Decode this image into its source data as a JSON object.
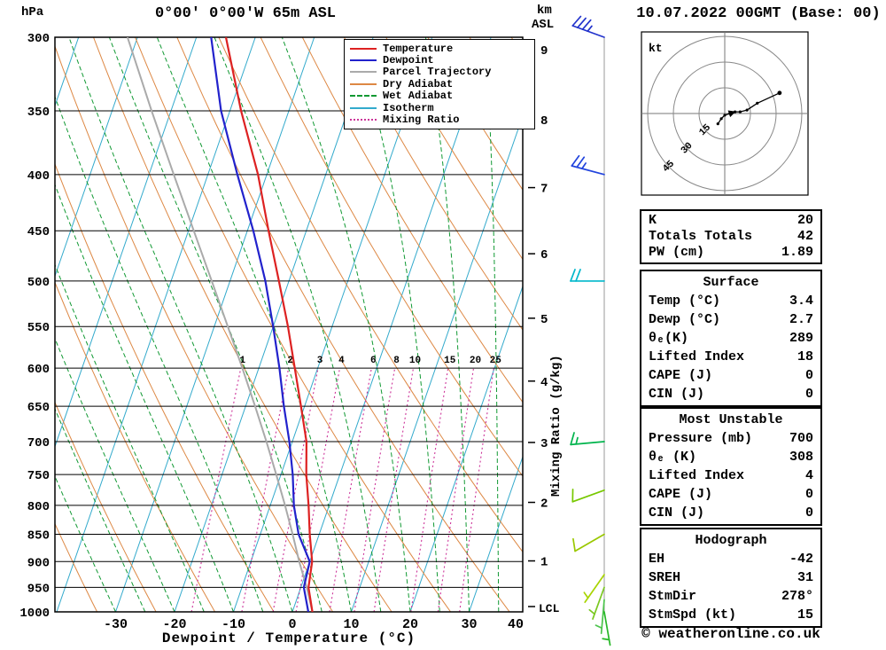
{
  "header": {
    "pressure_unit": "hPa",
    "station_title": "0°00' 0°00'W 65m ASL",
    "date_title": "10.07.2022 00GMT (Base: 00)",
    "km_label": "km",
    "asl_label": "ASL"
  },
  "chart_data": {
    "type": "skew-t-log-p sounding",
    "title": "0°00' 0°00'W 65m ASL",
    "xlabel": "Dewpoint / Temperature (°C)",
    "x_ticks": [
      -30,
      -20,
      -10,
      0,
      10,
      20,
      30,
      40
    ],
    "pressure_ticks_hpa": [
      300,
      350,
      400,
      450,
      500,
      550,
      600,
      650,
      700,
      750,
      800,
      850,
      900,
      950,
      1000
    ],
    "km_ticks": [
      9,
      8,
      7,
      6,
      5,
      4,
      3,
      2,
      1
    ],
    "lcl_label": "LCL",
    "mixing_ratio_axis_label": "Mixing Ratio (g/kg)",
    "mixing_ratio_lines_g_kg": [
      1,
      2,
      3,
      4,
      6,
      8,
      10,
      15,
      20,
      25
    ],
    "isotherm_step_c": 10,
    "dry_adiabat_step_k": 10,
    "wet_adiabat_step_c": 5,
    "legend": [
      {
        "label": "Temperature",
        "color": "#dd2222",
        "style": "solid"
      },
      {
        "label": "Dewpoint",
        "color": "#2222cc",
        "style": "solid"
      },
      {
        "label": "Parcel Trajectory",
        "color": "#aaaaaa",
        "style": "solid"
      },
      {
        "label": "Dry Adiabat",
        "color": "#dd8844",
        "style": "solid"
      },
      {
        "label": "Wet Adiabat",
        "color": "#119933",
        "style": "dashed"
      },
      {
        "label": "Isotherm",
        "color": "#33aacc",
        "style": "solid"
      },
      {
        "label": "Mixing Ratio",
        "color": "#cc3399",
        "style": "dotted"
      }
    ],
    "sounding": {
      "pressure_hpa": [
        1000,
        950,
        900,
        850,
        800,
        750,
        700,
        650,
        600,
        550,
        500,
        450,
        400,
        350,
        300
      ],
      "temperature_c": [
        3.4,
        1.3,
        0.4,
        -1.6,
        -3.5,
        -5.7,
        -7.6,
        -10.6,
        -13.9,
        -17.5,
        -21.7,
        -26.4,
        -31.5,
        -38.1,
        -45.0
      ],
      "dewpoint_c": [
        2.7,
        0.5,
        0.0,
        -3.5,
        -6.0,
        -8.0,
        -10.5,
        -13.5,
        -16.5,
        -20.0,
        -24.0,
        -29.0,
        -35.0,
        -41.5,
        -47.5
      ],
      "parcel_c": [
        3.4,
        1.0,
        -1.8,
        -4.5,
        -7.5,
        -10.8,
        -14.4,
        -18.4,
        -22.8,
        -27.7,
        -33.1,
        -39.1,
        -45.8,
        -53.3,
        -61.7
      ]
    },
    "wind_barbs": [
      {
        "pressure_hpa": 300,
        "speed_kt": 35,
        "dir_deg": 290,
        "color": "#2233cc"
      },
      {
        "pressure_hpa": 400,
        "speed_kt": 25,
        "dir_deg": 285,
        "color": "#2244dd"
      },
      {
        "pressure_hpa": 500,
        "speed_kt": 20,
        "dir_deg": 270,
        "color": "#00b8cc"
      },
      {
        "pressure_hpa": 700,
        "speed_kt": 15,
        "dir_deg": 265,
        "color": "#00b44c"
      },
      {
        "pressure_hpa": 775,
        "speed_kt": 10,
        "dir_deg": 250,
        "color": "#77c800"
      },
      {
        "pressure_hpa": 850,
        "speed_kt": 10,
        "dir_deg": 240,
        "color": "#9ac800"
      },
      {
        "pressure_hpa": 925,
        "speed_kt": 5,
        "dir_deg": 215,
        "color": "#a8d400"
      },
      {
        "pressure_hpa": 950,
        "speed_kt": 5,
        "dir_deg": 200,
        "color": "#7ac820"
      },
      {
        "pressure_hpa": 975,
        "speed_kt": 5,
        "dir_deg": 185,
        "color": "#4cc44c"
      },
      {
        "pressure_hpa": 1000,
        "speed_kt": 5,
        "dir_deg": 170,
        "color": "#28b828"
      }
    ]
  },
  "hodograph": {
    "unit_label": "kt",
    "ring_step_kt": 15,
    "ring_labels": [
      "15",
      "30",
      "45"
    ],
    "trace_uv_kt": [
      [
        -4,
        -6
      ],
      [
        -2,
        -3
      ],
      [
        0,
        -1
      ],
      [
        3,
        0
      ],
      [
        6,
        1
      ],
      [
        9,
        1
      ],
      [
        13,
        2
      ],
      [
        19,
        6
      ],
      [
        32,
        12
      ]
    ]
  },
  "tables": [
    {
      "title": "",
      "rows": [
        [
          "K",
          "20"
        ],
        [
          "Totals Totals",
          "42"
        ],
        [
          "PW (cm)",
          "1.89"
        ]
      ]
    },
    {
      "title": "Surface",
      "rows": [
        [
          "Temp (°C)",
          "3.4"
        ],
        [
          "Dewp (°C)",
          "2.7"
        ],
        [
          "θₑ(K)",
          "289"
        ],
        [
          "Lifted Index",
          "18"
        ],
        [
          "CAPE (J)",
          "0"
        ],
        [
          "CIN (J)",
          "0"
        ]
      ]
    },
    {
      "title": "Most Unstable",
      "rows": [
        [
          "Pressure (mb)",
          "700"
        ],
        [
          "θₑ (K)",
          "308"
        ],
        [
          "Lifted Index",
          "4"
        ],
        [
          "CAPE (J)",
          "0"
        ],
        [
          "CIN (J)",
          "0"
        ]
      ]
    },
    {
      "title": "Hodograph",
      "rows": [
        [
          "EH",
          "-42"
        ],
        [
          "SREH",
          "31"
        ],
        [
          "StmDir",
          "278°"
        ],
        [
          "StmSpd (kt)",
          "15"
        ]
      ]
    }
  ],
  "footer": {
    "copyright": "© weatheronline.co.uk"
  },
  "colors": {
    "temperature": "#dd2222",
    "dewpoint": "#2222cc",
    "parcel": "#aaaaaa",
    "dry_adiabat": "#dd8844",
    "wet_adiabat": "#119933",
    "isotherm": "#33aacc",
    "mixing_ratio": "#cc3399"
  }
}
